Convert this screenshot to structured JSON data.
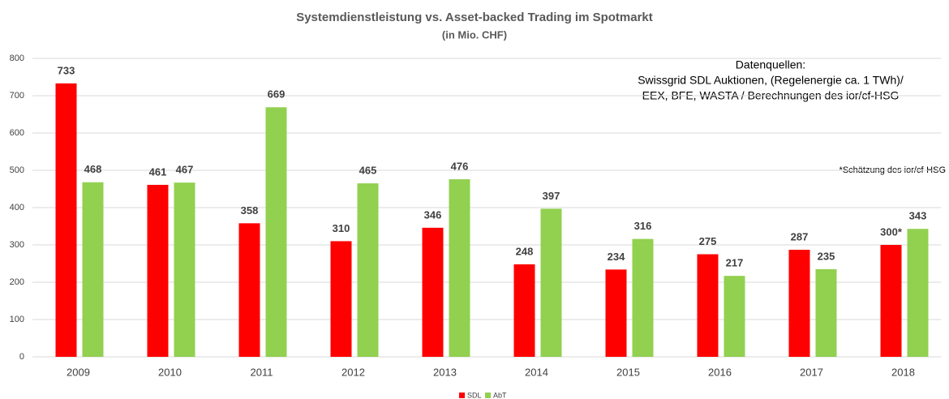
{
  "chart_data": {
    "type": "bar",
    "title": "Systemdienstleistung vs. Asset-backed Trading im Spotmarkt",
    "subtitle": "(in Mio. CHF)",
    "annotations": [
      "Datenquellen:",
      "Swissgrid SDL Auktionen, (Regelenergie ca. 1 TWh)/",
      "EEX, BFE, WASTA / Berechnungen des ior/cf-HSG",
      "*Schätzung des ior/cf-HSG"
    ],
    "categories": [
      "2009",
      "2010",
      "2011",
      "2012",
      "2013",
      "2014",
      "2015",
      "2016",
      "2017",
      "2018"
    ],
    "series": [
      {
        "name": "SDL",
        "color": "#ff0000",
        "values": [
          733,
          461,
          358,
          310,
          346,
          248,
          234,
          275,
          287,
          300
        ],
        "value_labels": [
          "733",
          "461",
          "358",
          "310",
          "346",
          "248",
          "234",
          "275",
          "287",
          "300*"
        ]
      },
      {
        "name": "AbT",
        "color": "#92d050",
        "values": [
          468,
          467,
          669,
          465,
          476,
          397,
          316,
          217,
          235,
          343
        ]
      }
    ],
    "ylim": [
      0,
      800
    ],
    "yticks": [
      0,
      100,
      200,
      300,
      400,
      500,
      600,
      700,
      800
    ],
    "grid": true,
    "legend": "bottom"
  }
}
